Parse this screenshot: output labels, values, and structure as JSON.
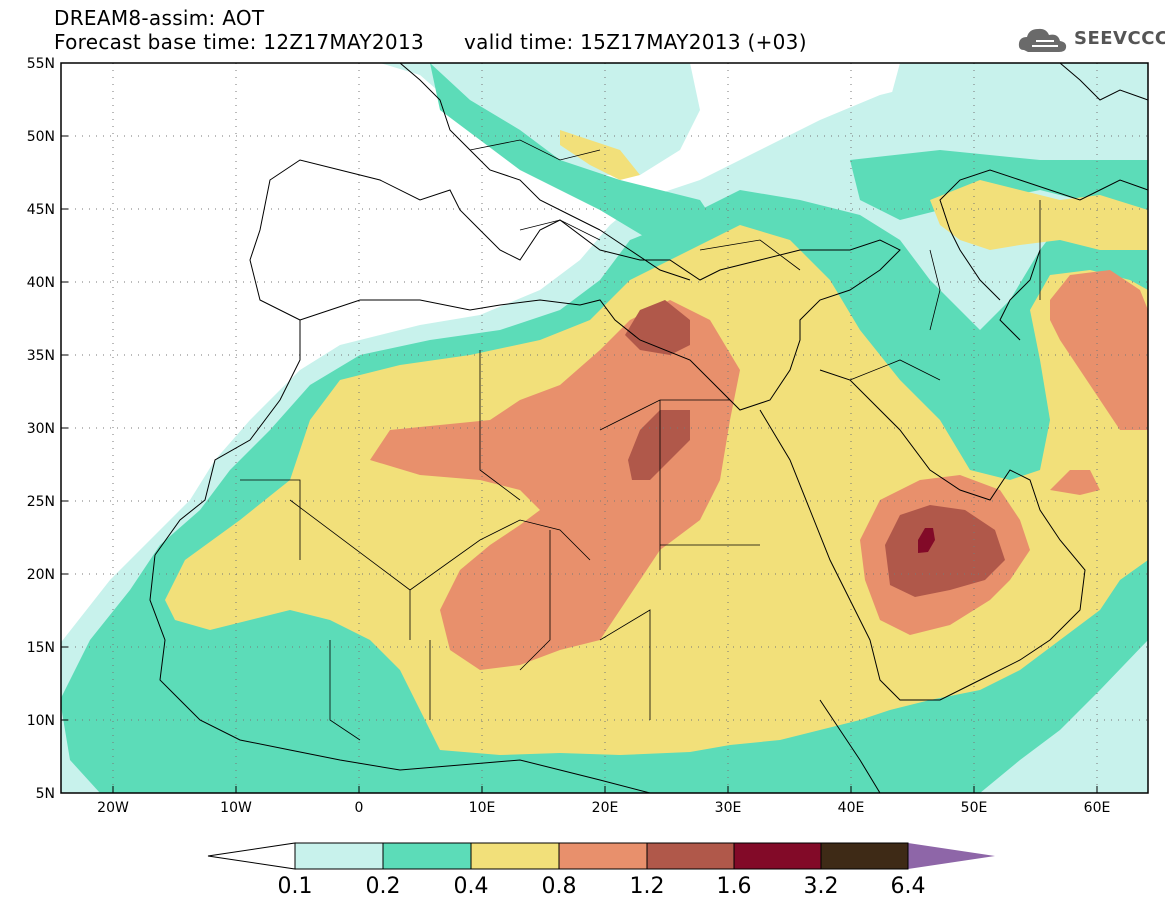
{
  "title": {
    "line1": "DREAM8-assim: AOT",
    "base_time": "Forecast base time: 12Z17MAY2013",
    "valid_time": "valid time: 15Z17MAY2013 (+03)"
  },
  "logo": {
    "text": "SEEVCCC",
    "icon": "cloud-logo-icon"
  },
  "map": {
    "projection": "lat-lon",
    "lon_range": [
      -25,
      65
    ],
    "lat_range": [
      5,
      55
    ],
    "lon_ticks": [
      "20W",
      "10W",
      "0",
      "10E",
      "20E",
      "30E",
      "40E",
      "50E",
      "60E"
    ],
    "lat_ticks": [
      "55N",
      "50N",
      "45N",
      "40N",
      "35N",
      "30N",
      "25N",
      "20N",
      "15N",
      "10N",
      "5N"
    ],
    "gridlines": "dotted"
  },
  "colorbar": {
    "labels": [
      "0.1",
      "0.2",
      "0.4",
      "0.8",
      "1.2",
      "1.6",
      "3.2",
      "6.4"
    ],
    "colors": [
      "#c8f2ec",
      "#5cdcb8",
      "#f2e07a",
      "#e8906c",
      "#b0584a",
      "#820a28",
      "#3e2a16",
      "#8e66a8"
    ],
    "extend": "both"
  },
  "levels": {
    "c0": "#c8f2ec",
    "c1": "#5cdcb8",
    "c2": "#f2e07a",
    "c3": "#e8906c",
    "c4": "#b0584a",
    "c5": "#820a28",
    "c6": "#3e2a16",
    "c7": "#8e66a8"
  }
}
